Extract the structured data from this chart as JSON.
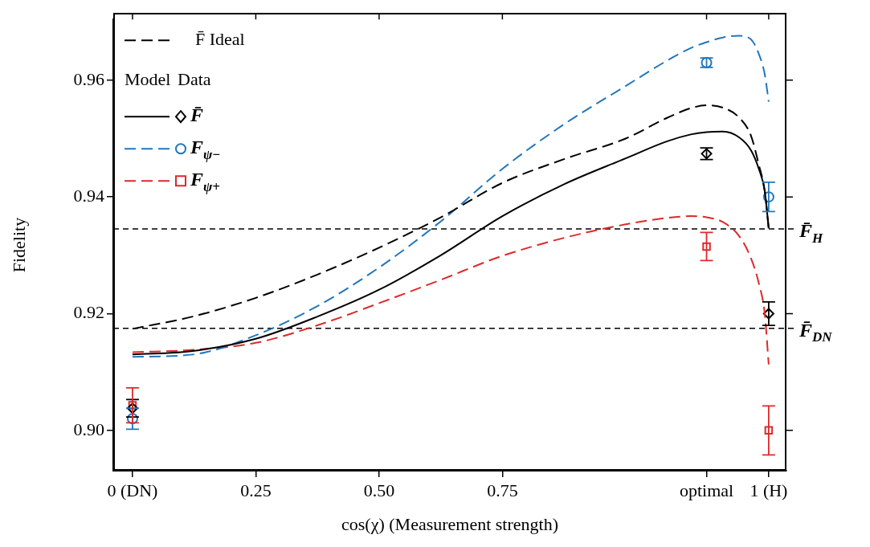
{
  "chart_data": {
    "type": "line",
    "xlabel": "cos(χ) (Measurement strength)",
    "ylabel": "Fidelity",
    "xlim": [
      -0.039,
      1.326
    ],
    "ylim": [
      0.8931,
      0.9704
    ],
    "xticks": [
      {
        "value": 0,
        "label": "0 (DN)"
      },
      0.25,
      {
        "value": 0.5,
        "label": "0.50"
      },
      0.75,
      {
        "value": 1.164,
        "label": "optimal"
      },
      {
        "value": 1.29,
        "label": "1 (H)"
      }
    ],
    "yticks": [
      {
        "value": 0.9,
        "label": "0.90"
      },
      0.92,
      0.94,
      0.96
    ],
    "grid": false,
    "legend": "top left",
    "annotations": [
      "Model",
      "Data"
    ],
    "ref_lines": [
      {
        "axis": "y",
        "value": 0.9345,
        "label": "F̄$_{H}$",
        "color": "#000000",
        "line_style": "dashed"
      },
      {
        "axis": "y",
        "value": 0.9175,
        "label": "F̄$_{DN}$",
        "color": "#000000",
        "line_style": "dashed"
      }
    ],
    "series": [
      {
        "name": "F̄ Ideal",
        "color": "#000000",
        "line_style": "dashed",
        "x": [
          0,
          0.122,
          0.25,
          0.375,
          0.5,
          0.625,
          0.75,
          0.876,
          1.0,
          1.083,
          1.132,
          1.164,
          1.197,
          1.23,
          1.254,
          1.27,
          1.282,
          1.29
        ],
        "values": [
          0.9174,
          0.9195,
          0.9227,
          0.9267,
          0.9313,
          0.9365,
          0.9424,
          0.9465,
          0.95,
          0.9535,
          0.9552,
          0.9557,
          0.9553,
          0.9536,
          0.9505,
          0.9455,
          0.941,
          0.9346
        ]
      },
      {
        "name": "F̄",
        "color": "#000000",
        "line_style": "solid",
        "x": [
          0,
          0.122,
          0.25,
          0.375,
          0.5,
          0.625,
          0.75,
          0.876,
          1.0,
          1.083,
          1.132,
          1.164,
          1.197,
          1.23,
          1.254,
          1.27,
          1.282,
          1.29
        ],
        "values": [
          0.913,
          0.9136,
          0.9157,
          0.9195,
          0.9241,
          0.93,
          0.9367,
          0.9422,
          0.9466,
          0.9495,
          0.9507,
          0.9511,
          0.9512,
          0.9502,
          0.948,
          0.9448,
          0.941,
          0.9346
        ]
      },
      {
        "name": "F$_{ψ−}$",
        "color": "#2277bb",
        "line_style": "dashed",
        "x": [
          0,
          0.122,
          0.25,
          0.375,
          0.5,
          0.625,
          0.75,
          0.876,
          1.0,
          1.083,
          1.132,
          1.164,
          1.197,
          1.23,
          1.254,
          1.27,
          1.282,
          1.29
        ],
        "values": [
          0.9126,
          0.913,
          0.9163,
          0.9213,
          0.9279,
          0.9358,
          0.9448,
          0.9525,
          0.959,
          0.9633,
          0.9655,
          0.9665,
          0.9673,
          0.9676,
          0.967,
          0.9645,
          0.961,
          0.9563
        ]
      },
      {
        "name": "F$_{ψ+}$",
        "color": "#dd2a2a",
        "line_style": "dashed",
        "x": [
          0,
          0.122,
          0.25,
          0.375,
          0.5,
          0.625,
          0.75,
          0.876,
          1.0,
          1.083,
          1.132,
          1.164,
          1.197,
          1.23,
          1.254,
          1.27,
          1.282,
          1.29
        ],
        "values": [
          0.9134,
          0.9138,
          0.915,
          0.918,
          0.9218,
          0.9258,
          0.9299,
          0.933,
          0.9353,
          0.9364,
          0.9367,
          0.9365,
          0.9357,
          0.9333,
          0.9295,
          0.9252,
          0.92,
          0.9113
        ]
      },
      {
        "type": "scatter",
        "color": "#000000",
        "marker": "diamond",
        "x": [
          0,
          1.164,
          1.29
        ],
        "values": [
          0.9038,
          0.9474,
          0.92
        ],
        "errors": [
          0.0015,
          0.001,
          0.002
        ]
      },
      {
        "type": "scatter",
        "color": "#2277bb",
        "marker": "circle",
        "x": [
          0,
          1.164,
          1.29
        ],
        "values": [
          0.902,
          0.963,
          0.94
        ],
        "errors": [
          0.0018,
          0.0008,
          0.0025
        ]
      },
      {
        "type": "scatter",
        "color": "#dd2a2a",
        "marker": "square",
        "x": [
          0,
          1.164,
          1.29
        ],
        "values": [
          0.9043,
          0.9315,
          0.9
        ],
        "errors": [
          0.003,
          0.0024,
          0.0042
        ]
      }
    ]
  }
}
